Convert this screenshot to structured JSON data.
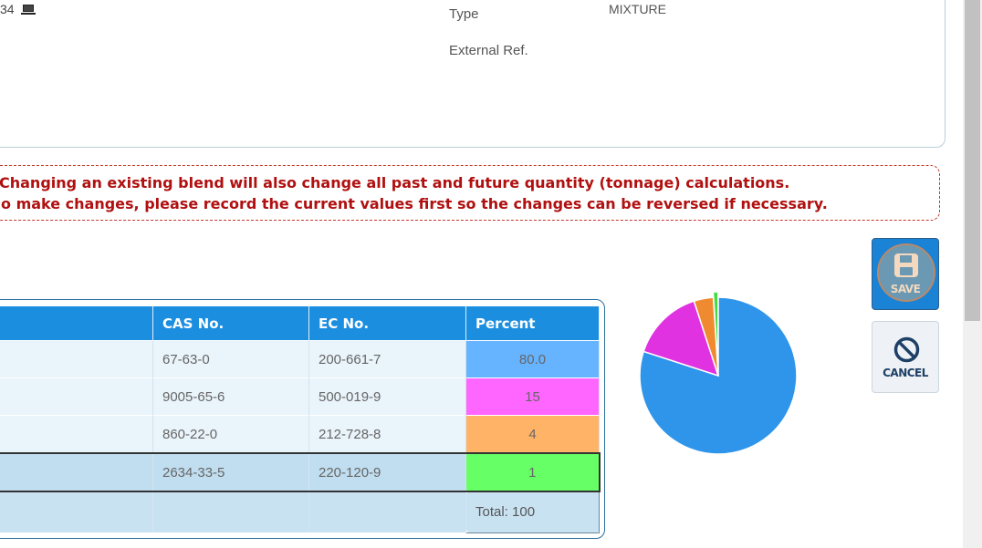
{
  "record": {
    "id_fragment": "34",
    "type_label": "Type",
    "type_value": "MIXTURE",
    "external_ref_label": "External Ref.",
    "external_ref_value": ""
  },
  "warning": {
    "line1": "Changing an existing blend will also change all past and future quantity (tonnage) calculations.",
    "line2": "o make changes, please record the current values first so the changes can be reversed if necessary."
  },
  "table": {
    "headers": [
      "",
      "CAS No.",
      "EC No.",
      "Percent"
    ],
    "rows": [
      {
        "cas": "67-63-0",
        "ec": "200-661-7",
        "percent": "80.0"
      },
      {
        "cas": "9005-65-6",
        "ec": "500-019-9",
        "percent": "15"
      },
      {
        "cas": "860-22-0",
        "ec": "212-728-8",
        "percent": "4"
      },
      {
        "cas": "2634-33-5",
        "ec": "220-120-9",
        "percent": "1"
      }
    ],
    "total": "Total: 100"
  },
  "chart_data": {
    "type": "pie",
    "values": [
      80,
      15,
      4,
      1
    ],
    "colors": [
      "#2f95ea",
      "#e032e0",
      "#f08a30",
      "#44dd44"
    ]
  },
  "colors": {
    "row_fills": [
      "#66b3ff",
      "#ff66ff",
      "#ffb366",
      "#66ff66"
    ],
    "header_blue": "#1b8ee0",
    "warning_red": "#b01010"
  },
  "actions": {
    "save_label": "SAVE",
    "cancel_label": "CANCEL"
  },
  "icons": [
    "laptop-icon",
    "floppy-disk-icon",
    "no-entry-icon"
  ]
}
